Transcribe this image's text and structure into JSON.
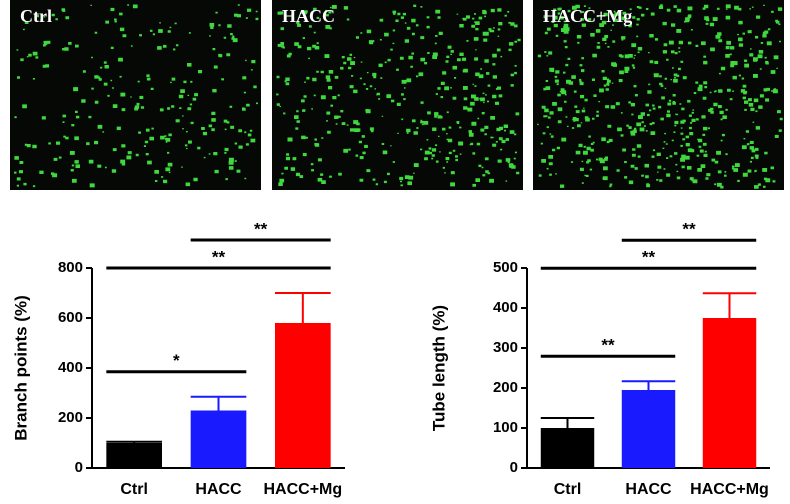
{
  "panels": [
    "Ctrl",
    "HACC",
    "HACC+Mg"
  ],
  "chart_data": [
    {
      "type": "bar",
      "y_label": "Branch points (%)",
      "categories": [
        "Ctrl",
        "HACC",
        "HACC+Mg"
      ],
      "values": [
        100,
        230,
        580
      ],
      "errors": [
        5,
        55,
        120
      ],
      "colors": [
        "#000000",
        "#1a1aff",
        "#ff0000"
      ],
      "ylim": [
        0,
        800
      ],
      "yticks": [
        0,
        200,
        400,
        600,
        800
      ],
      "annotations": [
        {
          "text": "*",
          "between": [
            "Ctrl",
            "HACC"
          ]
        },
        {
          "text": "**",
          "between": [
            "Ctrl",
            "HACC+Mg"
          ]
        },
        {
          "text": "**",
          "between": [
            "HACC",
            "HACC+Mg"
          ]
        }
      ]
    },
    {
      "type": "bar",
      "y_label": "Tube length (%)",
      "categories": [
        "Ctrl",
        "HACC",
        "HACC+Mg"
      ],
      "values": [
        100,
        195,
        375
      ],
      "errors": [
        25,
        22,
        62
      ],
      "colors": [
        "#000000",
        "#1a1aff",
        "#ff0000"
      ],
      "ylim": [
        0,
        500
      ],
      "yticks": [
        0,
        100,
        200,
        300,
        400,
        500
      ],
      "annotations": [
        {
          "text": "**",
          "between": [
            "Ctrl",
            "HACC"
          ]
        },
        {
          "text": "**",
          "between": [
            "Ctrl",
            "HACC+Mg"
          ]
        },
        {
          "text": "**",
          "between": [
            "HACC",
            "HACC+Mg"
          ]
        }
      ]
    }
  ]
}
